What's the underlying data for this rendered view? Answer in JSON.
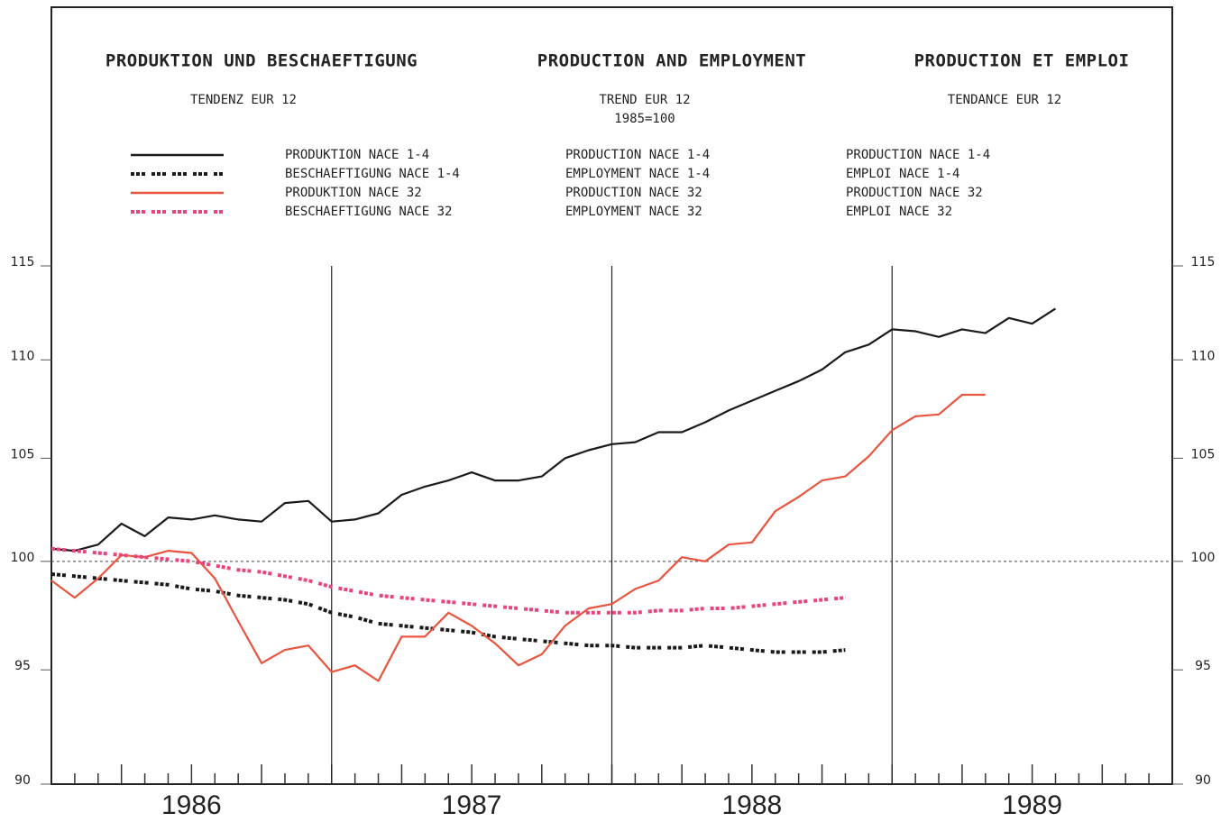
{
  "chart_data": {
    "type": "line",
    "titles": [
      "PRODUKTION UND BESCHAEFTIGUNG",
      "PRODUCTION AND EMPLOYMENT",
      "PRODUCTION ET EMPLOI"
    ],
    "subtitles": [
      "TENDENZ EUR 12",
      "TREND EUR 12",
      "TENDANCE EUR 12"
    ],
    "base_note": "1985=100",
    "x": [
      1986,
      1986.083,
      1986.167,
      1986.25,
      1986.333,
      1986.417,
      1986.5,
      1986.583,
      1986.667,
      1986.75,
      1986.833,
      1986.917,
      1987,
      1987.083,
      1987.167,
      1987.25,
      1987.333,
      1987.417,
      1987.5,
      1987.583,
      1987.667,
      1987.75,
      1987.833,
      1987.917,
      1988,
      1988.083,
      1988.167,
      1988.25,
      1988.333,
      1988.417,
      1988.5,
      1988.583,
      1988.667,
      1988.75,
      1988.833,
      1988.917,
      1989,
      1989.083,
      1989.167,
      1989.25,
      1989.333,
      1989.417,
      1989.5,
      1989.583
    ],
    "series": [
      {
        "name": "PRODUKTION NACE 1-4",
        "name_en": "PRODUCTION NACE 1-4",
        "name_fr": "PRODUCTION NACE 1-4",
        "color": "#1a1a1a",
        "dashed": false,
        "values": [
          100.6,
          100.5,
          100.8,
          101.8,
          101.2,
          102.1,
          102.0,
          102.2,
          102.0,
          101.9,
          102.8,
          102.9,
          101.9,
          102.0,
          102.3,
          103.2,
          103.6,
          103.9,
          104.3,
          103.9,
          103.9,
          104.1,
          105.0,
          105.4,
          105.7,
          105.8,
          106.3,
          106.3,
          106.8,
          107.4,
          107.9,
          108.4,
          108.9,
          109.5,
          110.4,
          110.8,
          111.6,
          111.5,
          111.2,
          111.6,
          111.4,
          112.2,
          111.9,
          112.7
        ]
      },
      {
        "name": "BESCHAEFTIGUNG NACE 1-4",
        "name_en": "EMPLOYMENT NACE 1-4",
        "name_fr": "EMPLOI NACE 1-4",
        "color": "#1a1a1a",
        "dashed": true,
        "values": [
          99.4,
          99.3,
          99.2,
          99.1,
          99.0,
          98.9,
          98.7,
          98.6,
          98.4,
          98.3,
          98.2,
          98.0,
          97.6,
          97.4,
          97.1,
          97.0,
          96.9,
          96.8,
          96.7,
          96.5,
          96.4,
          96.3,
          96.2,
          96.1,
          96.1,
          96.0,
          96.0,
          96.0,
          96.1,
          96.0,
          95.9,
          95.8,
          95.8,
          95.8,
          95.9,
          null,
          null,
          null,
          null,
          null,
          null,
          null,
          null,
          null
        ]
      },
      {
        "name": "PRODUKTION NACE 32",
        "name_en": "PRODUCTION NACE 32",
        "name_fr": "PRODUCTION NACE 32",
        "color": "#e8543e",
        "dashed": false,
        "values": [
          99.1,
          98.3,
          99.2,
          100.3,
          100.2,
          100.5,
          100.4,
          99.2,
          97.2,
          95.3,
          95.9,
          96.1,
          94.9,
          95.2,
          94.5,
          96.5,
          96.5,
          97.6,
          97.0,
          96.2,
          95.2,
          95.7,
          97.0,
          97.8,
          98.0,
          98.7,
          99.1,
          100.2,
          100.0,
          100.8,
          100.9,
          102.4,
          103.1,
          103.9,
          104.1,
          105.1,
          106.4,
          107.1,
          107.2,
          108.2,
          108.2,
          null,
          null,
          null
        ]
      },
      {
        "name": "BESCHAEFTIGUNG NACE 32",
        "name_en": "EMPLOYMENT NACE 32",
        "name_fr": "EMPLOI NACE 32",
        "color": "#e8457a",
        "dashed": true,
        "values": [
          100.6,
          100.5,
          100.4,
          100.3,
          100.2,
          100.1,
          100.0,
          99.8,
          99.6,
          99.5,
          99.3,
          99.1,
          98.8,
          98.6,
          98.4,
          98.3,
          98.2,
          98.1,
          98.0,
          97.9,
          97.8,
          97.7,
          97.6,
          97.6,
          97.6,
          97.6,
          97.7,
          97.7,
          97.8,
          97.8,
          97.9,
          98.0,
          98.1,
          98.2,
          98.3,
          null,
          null,
          null,
          null,
          null,
          null,
          null,
          null,
          null
        ]
      }
    ],
    "xlim": [
      1986,
      1990
    ],
    "xticks": [
      {
        "value": 1986.5,
        "label": "1986"
      },
      {
        "value": 1987.5,
        "label": "1987"
      },
      {
        "value": 1988.5,
        "label": "1988"
      },
      {
        "value": 1989.5,
        "label": "1989"
      }
    ],
    "year_lines": [
      1987,
      1988,
      1989
    ],
    "ylim": [
      90,
      115
    ],
    "yticks": [
      90,
      95,
      100,
      105,
      110,
      115
    ],
    "log_y": true,
    "reference_line": 100
  }
}
